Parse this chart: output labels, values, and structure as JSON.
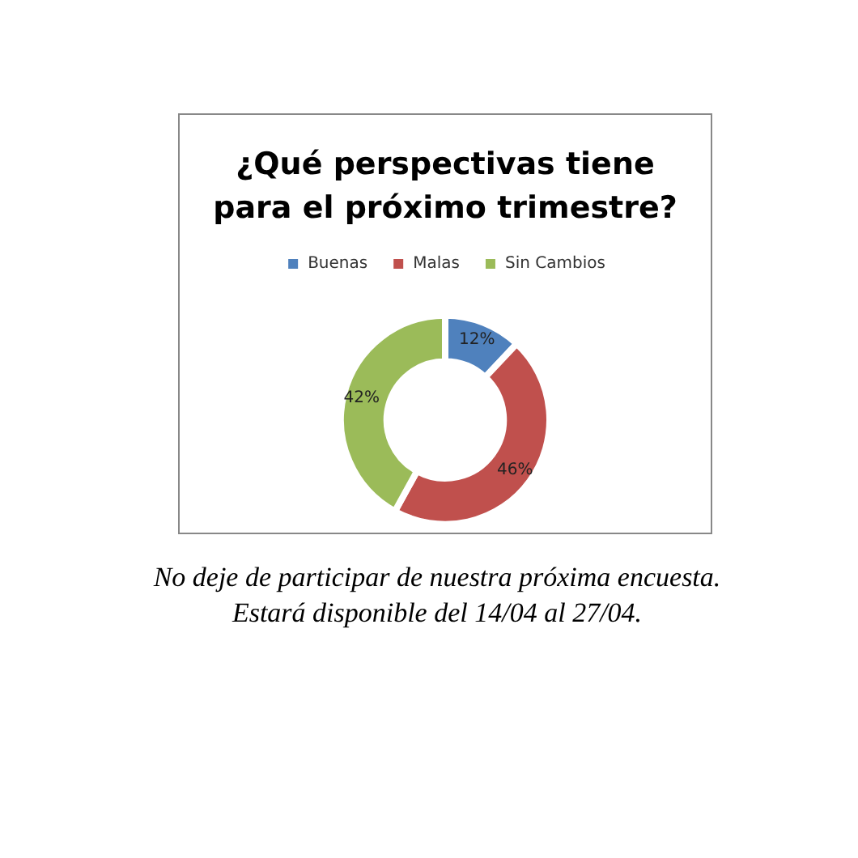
{
  "chart_data": {
    "type": "donut",
    "title": "¿Qué perspectivas tiene\npara el próximo trimestre?",
    "categories": [
      "Buenas",
      "Malas",
      "Sin Cambios"
    ],
    "values": [
      12,
      46,
      42
    ],
    "colors": [
      "#4f81bd",
      "#c0504d",
      "#9bbb59"
    ],
    "value_labels": [
      "12%",
      "46%",
      "42%"
    ],
    "legend": "top",
    "annotations": [
      "No deje de participar de nuestra próxima encuesta.\nEstará disponible del  14/04 al 27/04."
    ]
  }
}
